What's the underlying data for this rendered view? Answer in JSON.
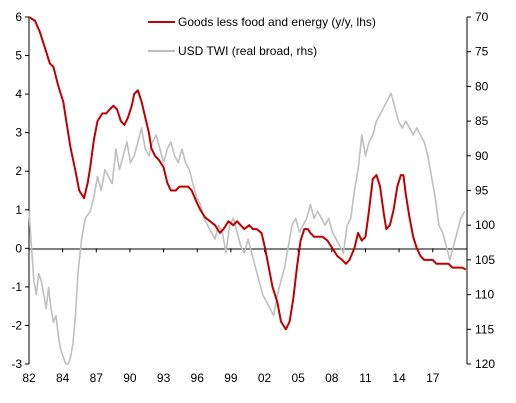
{
  "chart_data": {
    "type": "line",
    "title": "",
    "xlabel": "",
    "ylabel_left": "",
    "ylabel_right": "",
    "x_tick_labels": [
      "82",
      "84",
      "87",
      "90",
      "93",
      "96",
      "99",
      "02",
      "05",
      "08",
      "11",
      "14",
      "17"
    ],
    "x_tick_years": [
      1982,
      1984.75,
      1987.5,
      1990.25,
      1993,
      1995.75,
      1998.5,
      2001.25,
      2004,
      2006.75,
      2009.5,
      2012.25,
      2015
    ],
    "xlim": [
      1982,
      2017.8
    ],
    "y_left": {
      "ylim": [
        -3,
        6
      ],
      "ticks": [
        -3,
        -2,
        -1,
        0,
        1,
        2,
        3,
        4,
        5,
        6
      ]
    },
    "y_right": {
      "ylim": [
        70,
        120
      ],
      "inverted": true,
      "ticks": [
        70,
        75,
        80,
        85,
        90,
        95,
        100,
        105,
        110,
        115,
        120
      ]
    },
    "grid": false,
    "zero_line": true,
    "legend_position": "top",
    "colors": {
      "goods": "#c00000",
      "usd": "#bfbfbf"
    },
    "series": [
      {
        "name": "Goods less food and energy (y/y, lhs)",
        "axis": "left",
        "x": [
          1982.0,
          1982.5,
          1982.9,
          1983.3,
          1983.7,
          1984.0,
          1984.4,
          1984.8,
          1985.1,
          1985.4,
          1985.8,
          1986.1,
          1986.5,
          1986.8,
          1987.0,
          1987.3,
          1987.6,
          1988.0,
          1988.3,
          1988.6,
          1988.9,
          1989.2,
          1989.5,
          1989.8,
          1990.1,
          1990.4,
          1990.6,
          1990.9,
          1991.2,
          1991.5,
          1991.8,
          1992.0,
          1992.3,
          1992.6,
          1993.0,
          1993.3,
          1993.6,
          1994.0,
          1994.3,
          1994.6,
          1995.0,
          1995.3,
          1995.7,
          1996.0,
          1996.4,
          1996.8,
          1997.2,
          1997.6,
          1997.9,
          1998.3,
          1998.7,
          1999.0,
          1999.3,
          1999.6,
          2000.0,
          2000.3,
          2000.6,
          2001.0,
          2001.3,
          2001.6,
          2001.9,
          2002.3,
          2002.6,
          2003.0,
          2003.3,
          2003.6,
          2003.9,
          2004.2,
          2004.5,
          2004.8,
          2005.0,
          2005.3,
          2005.7,
          2006.0,
          2006.4,
          2006.8,
          2007.2,
          2007.6,
          2007.9,
          2008.2,
          2008.6,
          2008.9,
          2009.2,
          2009.5,
          2009.8,
          2010.1,
          2010.4,
          2010.7,
          2011.0,
          2011.2,
          2011.5,
          2011.8,
          2012.1,
          2012.4,
          2012.6,
          2012.8,
          2013.1,
          2013.4,
          2013.7,
          2014.0,
          2014.3,
          2014.6,
          2015.0,
          2015.3,
          2015.6,
          2016.0,
          2016.3,
          2016.6,
          2017.0,
          2017.4,
          2017.7
        ],
        "values": [
          6.0,
          5.9,
          5.6,
          5.2,
          4.8,
          4.7,
          4.2,
          3.8,
          3.2,
          2.6,
          2.0,
          1.5,
          1.3,
          1.7,
          2.1,
          2.8,
          3.3,
          3.5,
          3.5,
          3.6,
          3.7,
          3.6,
          3.3,
          3.2,
          3.4,
          3.7,
          4.0,
          4.1,
          3.8,
          3.4,
          3.0,
          2.6,
          2.4,
          2.3,
          2.1,
          1.7,
          1.5,
          1.5,
          1.6,
          1.6,
          1.6,
          1.5,
          1.2,
          1.0,
          0.8,
          0.7,
          0.6,
          0.4,
          0.5,
          0.7,
          0.6,
          0.7,
          0.6,
          0.5,
          0.6,
          0.5,
          0.5,
          0.4,
          0.0,
          -0.5,
          -1.0,
          -1.4,
          -1.9,
          -2.1,
          -1.9,
          -1.3,
          -0.5,
          0.2,
          0.5,
          0.5,
          0.4,
          0.3,
          0.3,
          0.3,
          0.2,
          0.0,
          -0.2,
          -0.3,
          -0.4,
          -0.3,
          0.0,
          0.4,
          0.2,
          0.3,
          1.0,
          1.8,
          1.9,
          1.6,
          0.9,
          0.5,
          0.6,
          1.0,
          1.6,
          1.9,
          1.9,
          1.4,
          0.8,
          0.3,
          0.0,
          -0.2,
          -0.3,
          -0.3,
          -0.3,
          -0.4,
          -0.4,
          -0.4,
          -0.4,
          -0.5,
          -0.5,
          -0.5,
          -0.55
        ]
      },
      {
        "name": "USD TWI (real broad, rhs)",
        "axis": "right",
        "x": [
          1982.0,
          1982.2,
          1982.4,
          1982.6,
          1982.8,
          1983.0,
          1983.2,
          1983.4,
          1983.6,
          1983.8,
          1984.0,
          1984.2,
          1984.4,
          1984.6,
          1984.8,
          1985.0,
          1985.2,
          1985.4,
          1985.6,
          1985.8,
          1986.0,
          1986.3,
          1986.6,
          1987.0,
          1987.3,
          1987.6,
          1987.9,
          1988.2,
          1988.5,
          1988.8,
          1989.1,
          1989.4,
          1989.7,
          1990.0,
          1990.3,
          1990.6,
          1990.9,
          1991.2,
          1991.5,
          1991.8,
          1992.1,
          1992.4,
          1992.7,
          1993.0,
          1993.3,
          1993.6,
          1993.9,
          1994.2,
          1994.5,
          1994.8,
          1995.1,
          1995.4,
          1995.7,
          1996.0,
          1996.3,
          1996.6,
          1996.9,
          1997.2,
          1997.5,
          1997.8,
          1998.1,
          1998.4,
          1998.7,
          1999.0,
          1999.3,
          1999.6,
          1999.9,
          2000.2,
          2000.5,
          2000.8,
          2001.1,
          2001.4,
          2001.7,
          2002.0,
          2002.3,
          2002.6,
          2002.9,
          2003.2,
          2003.5,
          2003.8,
          2004.1,
          2004.4,
          2004.7,
          2005.0,
          2005.3,
          2005.6,
          2005.9,
          2006.2,
          2006.5,
          2006.8,
          2007.1,
          2007.4,
          2007.7,
          2008.0,
          2008.3,
          2008.6,
          2008.9,
          2009.2,
          2009.5,
          2009.8,
          2010.1,
          2010.4,
          2010.7,
          2011.0,
          2011.3,
          2011.6,
          2011.9,
          2012.2,
          2012.5,
          2012.8,
          2013.1,
          2013.4,
          2013.7,
          2014.0,
          2014.3,
          2014.6,
          2014.9,
          2015.2,
          2015.5,
          2015.8,
          2016.1,
          2016.4,
          2016.7,
          2017.0,
          2017.3,
          2017.6
        ],
        "values": [
          98,
          103,
          108,
          110,
          107,
          108,
          110,
          112,
          109,
          112,
          114,
          113,
          116,
          118,
          119,
          120,
          120,
          119,
          117,
          113,
          107,
          102,
          99,
          98,
          96,
          93,
          95,
          92,
          93,
          94,
          89,
          92,
          90,
          88,
          91,
          90,
          88,
          86,
          89,
          90,
          88,
          87,
          89,
          91,
          89,
          88,
          90,
          91,
          89,
          91,
          92,
          94,
          96,
          97,
          99,
          100,
          101,
          102,
          100,
          101,
          104,
          100,
          99,
          101,
          103,
          104,
          102,
          104,
          106,
          108,
          110,
          111,
          112,
          113,
          110,
          108,
          106,
          103,
          100,
          99,
          101,
          100,
          99,
          97,
          99,
          98,
          99,
          100,
          99,
          101,
          102,
          103,
          104,
          100,
          99,
          95,
          92,
          87,
          90,
          88,
          87,
          85,
          84,
          83,
          82,
          81,
          83,
          85,
          86,
          85,
          86,
          87,
          86,
          87,
          88,
          90,
          93,
          96,
          100,
          101,
          103,
          105,
          103,
          101,
          99,
          98
        ]
      }
    ]
  }
}
